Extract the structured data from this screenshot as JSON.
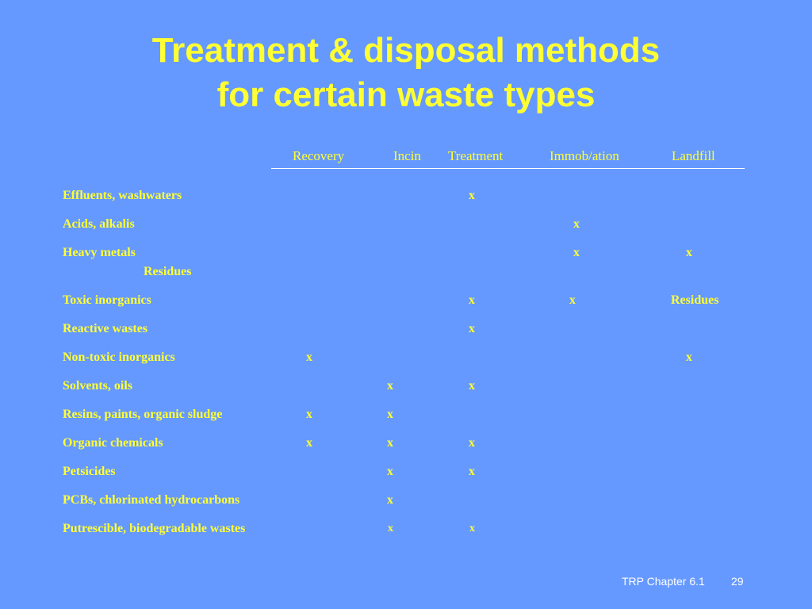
{
  "title": {
    "line1": "Treatment & disposal methods",
    "line2": "for certain waste types"
  },
  "table": {
    "columns": [
      "Recovery",
      "Incin",
      "Treatment",
      "Immob/ation",
      "Landfill"
    ],
    "rows": [
      {
        "label": "Effluents, washwaters",
        "marks": [
          "",
          "",
          "x",
          "",
          ""
        ]
      },
      {
        "label": "Acids, alkalis",
        "marks": [
          "",
          "",
          "",
          "x",
          ""
        ]
      },
      {
        "label": "Heavy metals",
        "marks": [
          "",
          "",
          "",
          "x",
          "x"
        ],
        "note": "Residues"
      },
      {
        "label": "Toxic inorganics",
        "marks": [
          "",
          "",
          "x",
          "x",
          "Residues"
        ]
      },
      {
        "label": "Reactive wastes",
        "marks": [
          "",
          "",
          "x",
          "",
          ""
        ]
      },
      {
        "label": "Non-toxic inorganics",
        "marks": [
          "x",
          "",
          "",
          "",
          "x"
        ]
      },
      {
        "label": "Solvents, oils",
        "marks": [
          "",
          "x",
          "x",
          "",
          ""
        ]
      },
      {
        "label": "Resins, paints, organic sludge",
        "marks": [
          "x",
          "x",
          "",
          "",
          ""
        ]
      },
      {
        "label": "Organic chemicals",
        "marks": [
          "x",
          "x",
          "x",
          "",
          ""
        ]
      },
      {
        "label": "Petsicides",
        "marks": [
          "",
          "x",
          "x",
          "",
          ""
        ]
      },
      {
        "label": "PCBs, chlorinated hydrocarbons",
        "marks": [
          "",
          "x",
          "",
          "",
          ""
        ]
      },
      {
        "label": "Putrescible, biodegradable wastes",
        "marks": [
          "",
          "x",
          "x",
          "",
          ""
        ]
      }
    ]
  },
  "footer": {
    "text": "TRP Chapter 6.1",
    "page": "29"
  },
  "colors": {
    "background": "#6699ff",
    "text": "#ffff33",
    "footer_text": "#ffffff"
  }
}
